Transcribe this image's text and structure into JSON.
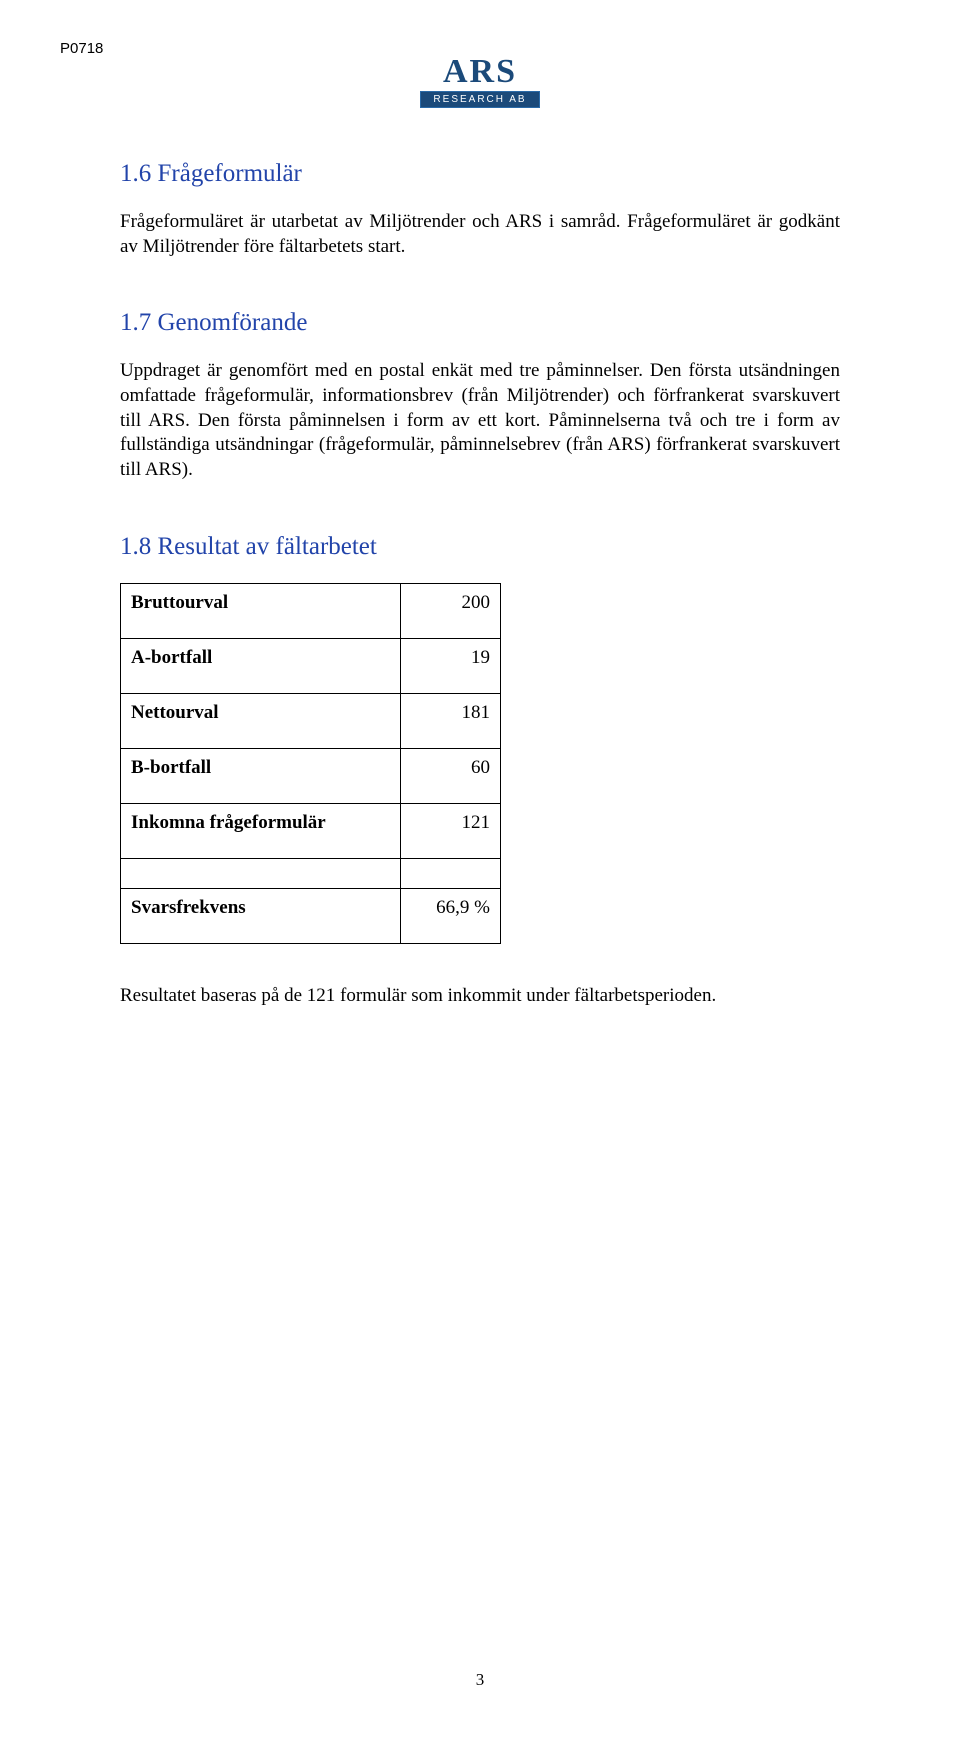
{
  "header": {
    "code": "P0718",
    "logo_top": "ARS",
    "logo_bottom": "RESEARCH AB"
  },
  "sections": {
    "s1": {
      "heading": "1.6  Frågeformulär",
      "body": "Frågeformuläret är utarbetat av Miljötrender och ARS i samråd. Frågeformuläret är godkänt av Miljötrender före fältarbetets start."
    },
    "s2": {
      "heading": "1.7  Genomförande",
      "body": "Uppdraget är genomfört med en postal enkät med tre påminnelser. Den första utsändningen omfattade frågeformulär, informationsbrev (från Miljötrender) och förfrankerat svarskuvert till ARS. Den första påminnelsen i form av ett kort. Påminnelserna två och tre i form av fullständiga utsändningar (frågeformulär, påminnelsebrev (från ARS) förfrankerat svarskuvert till ARS)."
    },
    "s3": {
      "heading": "1.8  Resultat av fältarbetet"
    }
  },
  "results": {
    "rows": [
      {
        "label": "Bruttourval",
        "value": "200"
      },
      {
        "label": "A-bortfall",
        "value": "19"
      },
      {
        "label": "Nettourval",
        "value": "181"
      },
      {
        "label": "B-bortfall",
        "value": "60"
      },
      {
        "label": "Inkomna frågeformulär",
        "value": "121"
      }
    ],
    "summary": {
      "label": "Svarsfrekvens",
      "value": "66,9 %"
    }
  },
  "footnote": "Resultatet baseras på de 121 formulär som inkommit under fältarbetsperioden.",
  "page_number": "3",
  "colors": {
    "heading_color": "#2244aa",
    "logo_color": "#1b4a7a",
    "text_color": "#000000",
    "background": "#ffffff"
  },
  "typography": {
    "body_font": "Times New Roman",
    "body_size_pt": 14,
    "heading_size_pt": 19
  }
}
